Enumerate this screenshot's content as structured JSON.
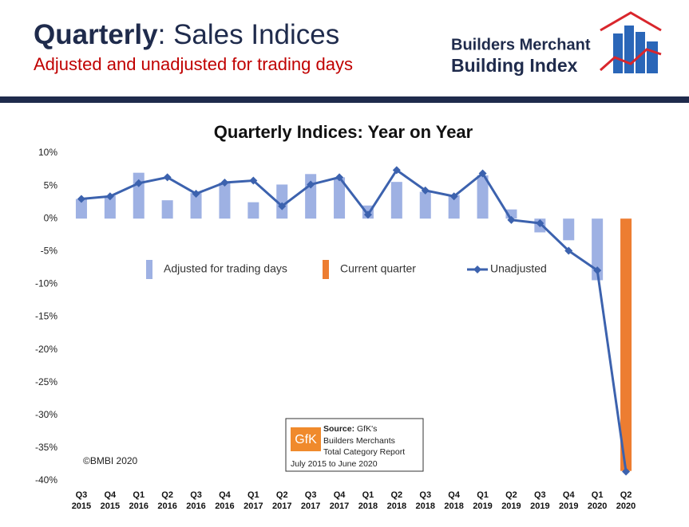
{
  "header": {
    "title_main": "Quarterly",
    "title_rest": ": Sales Indices",
    "subtitle": "Adjusted and unadjusted for trading days",
    "logo_line1": "Builders Merchant",
    "logo_line2": "Building Index"
  },
  "chart_data": {
    "type": "bar_line",
    "title": "Quarterly Indices: Year on Year",
    "categories": [
      "Q3 2015",
      "Q4 2015",
      "Q1 2016",
      "Q2 2016",
      "Q3 2016",
      "Q4 2016",
      "Q1 2017",
      "Q2 2017",
      "Q3 2017",
      "Q4 2017",
      "Q1 2018",
      "Q2 2018",
      "Q3 2018",
      "Q4 2018",
      "Q1 2019",
      "Q2 2019",
      "Q3 2019",
      "Q4 2019",
      "Q1 2020",
      "Q2 2020"
    ],
    "series": [
      {
        "name": "Adjusted for trading days",
        "type": "bar",
        "color": "#9eb1e3",
        "values": [
          3.0,
          3.5,
          7.0,
          2.8,
          3.9,
          5.5,
          2.5,
          5.2,
          6.8,
          6.3,
          2.0,
          5.6,
          4.1,
          3.6,
          6.6,
          1.4,
          -2.1,
          -3.3,
          -9.4,
          null
        ]
      },
      {
        "name": "Current quarter",
        "type": "bar",
        "color": "#ed7d31",
        "values": [
          null,
          null,
          null,
          null,
          null,
          null,
          null,
          null,
          null,
          null,
          null,
          null,
          null,
          null,
          null,
          null,
          null,
          null,
          null,
          -38.5
        ]
      },
      {
        "name": "Unadjusted",
        "type": "line",
        "color": "#3c62ae",
        "values": [
          3.0,
          3.4,
          5.4,
          6.3,
          3.8,
          5.5,
          5.8,
          1.9,
          5.2,
          6.3,
          0.6,
          7.4,
          4.3,
          3.4,
          6.9,
          -0.2,
          -0.7,
          -4.9,
          -7.9,
          -38.6
        ]
      }
    ],
    "ylim": [
      -40,
      10
    ],
    "yticks": [
      {
        "value": 10,
        "label": "10%"
      },
      {
        "value": 5,
        "label": "5%"
      },
      {
        "value": 0,
        "label": "0%"
      },
      {
        "value": -5,
        "label": "-5%"
      },
      {
        "value": -10,
        "label": "-10%"
      },
      {
        "value": -15,
        "label": "-15%"
      },
      {
        "value": -20,
        "label": "-20%"
      },
      {
        "value": -25,
        "label": "-25%"
      },
      {
        "value": -30,
        "label": "-30%"
      },
      {
        "value": -35,
        "label": "-35%"
      },
      {
        "value": -40,
        "label": "-40%"
      }
    ],
    "copyright": "©BMBI 2020",
    "source": {
      "logo": "GfK",
      "label": "Source:",
      "line1": " GfK's",
      "line2": "Builders Merchants",
      "line3": "Total Category Report",
      "line4": "July 2015 to June 2020"
    }
  }
}
